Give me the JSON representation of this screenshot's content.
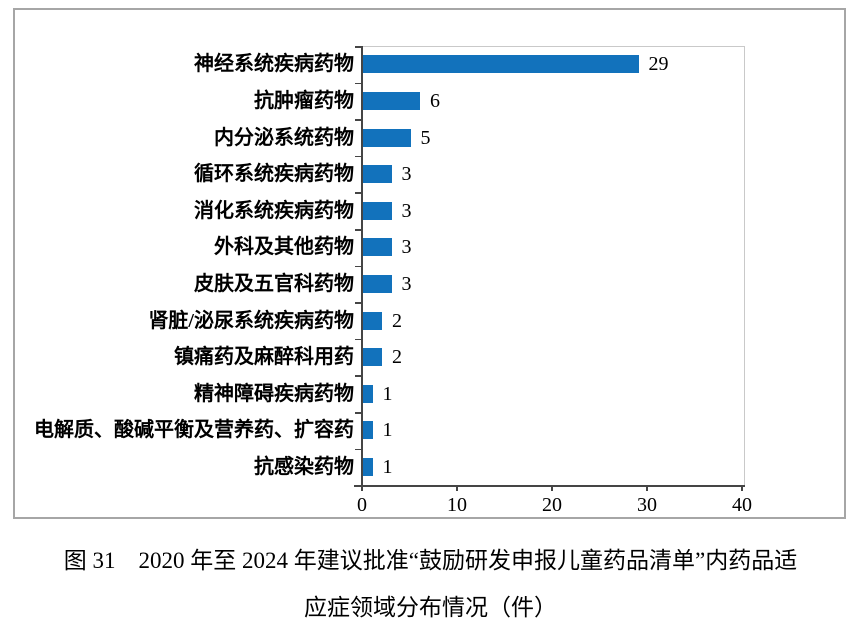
{
  "caption": {
    "line1": "图 31　2020 年至 2024 年建议批准“鼓励研发申报儿童药品清单”内药品适",
    "line2": "应症领域分布情况（件）"
  },
  "chart_data": {
    "type": "bar",
    "orientation": "horizontal",
    "title": "",
    "xlabel": "",
    "ylabel": "",
    "categories": [
      "神经系统疾病药物",
      "抗肿瘤药物",
      "内分泌系统药物",
      "循环系统疾病药物",
      "消化系统疾病药物",
      "外科及其他药物",
      "皮肤及五官科药物",
      "肾脏/泌尿系统疾病药物",
      "镇痛药及麻醉科用药",
      "精神障碍疾病药物",
      "电解质、酸碱平衡及营养药、扩容药",
      "抗感染药物"
    ],
    "values": [
      29,
      6,
      5,
      3,
      3,
      3,
      3,
      2,
      2,
      1,
      1,
      1
    ],
    "data_labels_shown": true,
    "x_ticks": [
      "0",
      "10",
      "20",
      "30",
      "40"
    ],
    "xlim": [
      0,
      40
    ],
    "grid": false,
    "legend": "none"
  },
  "colors": {
    "bar": "#1272BC",
    "frame_border": "#A6A6A6",
    "axis": "#454545",
    "plot_border": "#C9C9C9",
    "text": "#000000"
  }
}
